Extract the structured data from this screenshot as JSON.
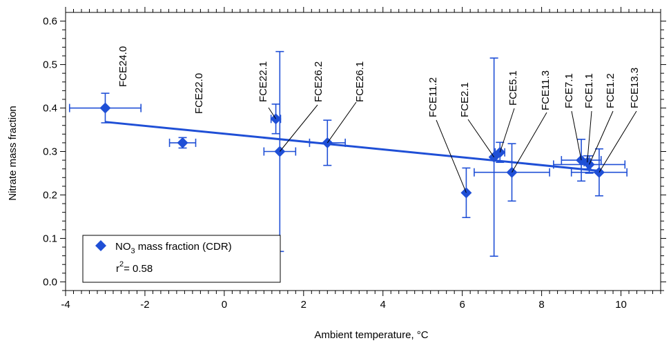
{
  "chart_data": {
    "type": "scatter",
    "title": "",
    "xlabel": "Ambient temperature, °C",
    "ylabel": "Nitrate mass fraction",
    "xlim": [
      -4,
      11
    ],
    "ylim": [
      -0.02,
      0.62
    ],
    "x_ticks": [
      -4,
      -2,
      0,
      2,
      4,
      6,
      8,
      10
    ],
    "y_ticks": [
      0.0,
      0.1,
      0.2,
      0.3,
      0.4,
      0.5,
      0.6
    ],
    "y_tick_labels": [
      "0.0",
      "0.1",
      "0.2",
      "0.3",
      "0.4",
      "0.5",
      "0.6"
    ],
    "grid": false,
    "color": "#1f4fd6",
    "series": [
      {
        "name": "NO3 mass fraction (CDR)",
        "marker": "diamond",
        "points": [
          {
            "label": "FCE24.0",
            "x": -3.0,
            "y": 0.4,
            "xerr": 0.9,
            "yerr": 0.034
          },
          {
            "label": "FCE22.0",
            "x": -1.05,
            "y": 0.32,
            "xerr": 0.33,
            "yerr": 0.012
          },
          {
            "label": "FCE22.1",
            "x": 1.3,
            "y": 0.375,
            "xerr": 0.12,
            "yerr": 0.034
          },
          {
            "label": "FCE26.2",
            "x": 1.4,
            "y": 0.3,
            "xerr": 0.4,
            "yerr": 0.23
          },
          {
            "label": "FCE26.1",
            "x": 2.6,
            "y": 0.32,
            "xerr": 0.45,
            "yerr": 0.052
          },
          {
            "label": "FCE11.2",
            "x": 6.1,
            "y": 0.205,
            "xerr": 0.0,
            "yerr": 0.057
          },
          {
            "label": "FCE2.1",
            "x": 6.8,
            "y": 0.287,
            "xerr": 0.0,
            "yerr": 0.228
          },
          {
            "label": "FCE5.1",
            "x": 6.95,
            "y": 0.298,
            "xerr": 0.12,
            "yerr": 0.023
          },
          {
            "label": "FCE11.3",
            "x": 7.25,
            "y": 0.252,
            "xerr": 0.95,
            "yerr": 0.066
          },
          {
            "label": "FCE7.1",
            "x": 9.0,
            "y": 0.28,
            "xerr": 0.5,
            "yerr": 0.048
          },
          {
            "label": "FCE1.1",
            "x": 9.15,
            "y": 0.275,
            "xerr": 0.08,
            "yerr": 0.015
          },
          {
            "label": "FCE1.2",
            "x": 9.2,
            "y": 0.27,
            "xerr": 0.9,
            "yerr": 0.02
          },
          {
            "label": "FCE13.3",
            "x": 9.45,
            "y": 0.252,
            "xerr": 0.7,
            "yerr": 0.054
          }
        ]
      }
    ],
    "fit_line": {
      "x": [
        -3.0,
        9.5
      ],
      "y": [
        0.368,
        0.255
      ]
    },
    "legend": {
      "position": "bottom-left",
      "entry_main": "NO",
      "entry_sub": "3",
      "entry_rest": " mass fraction (CDR)",
      "r_text": "r",
      "r_sup": "2",
      "r_value": "= 0.58"
    }
  }
}
